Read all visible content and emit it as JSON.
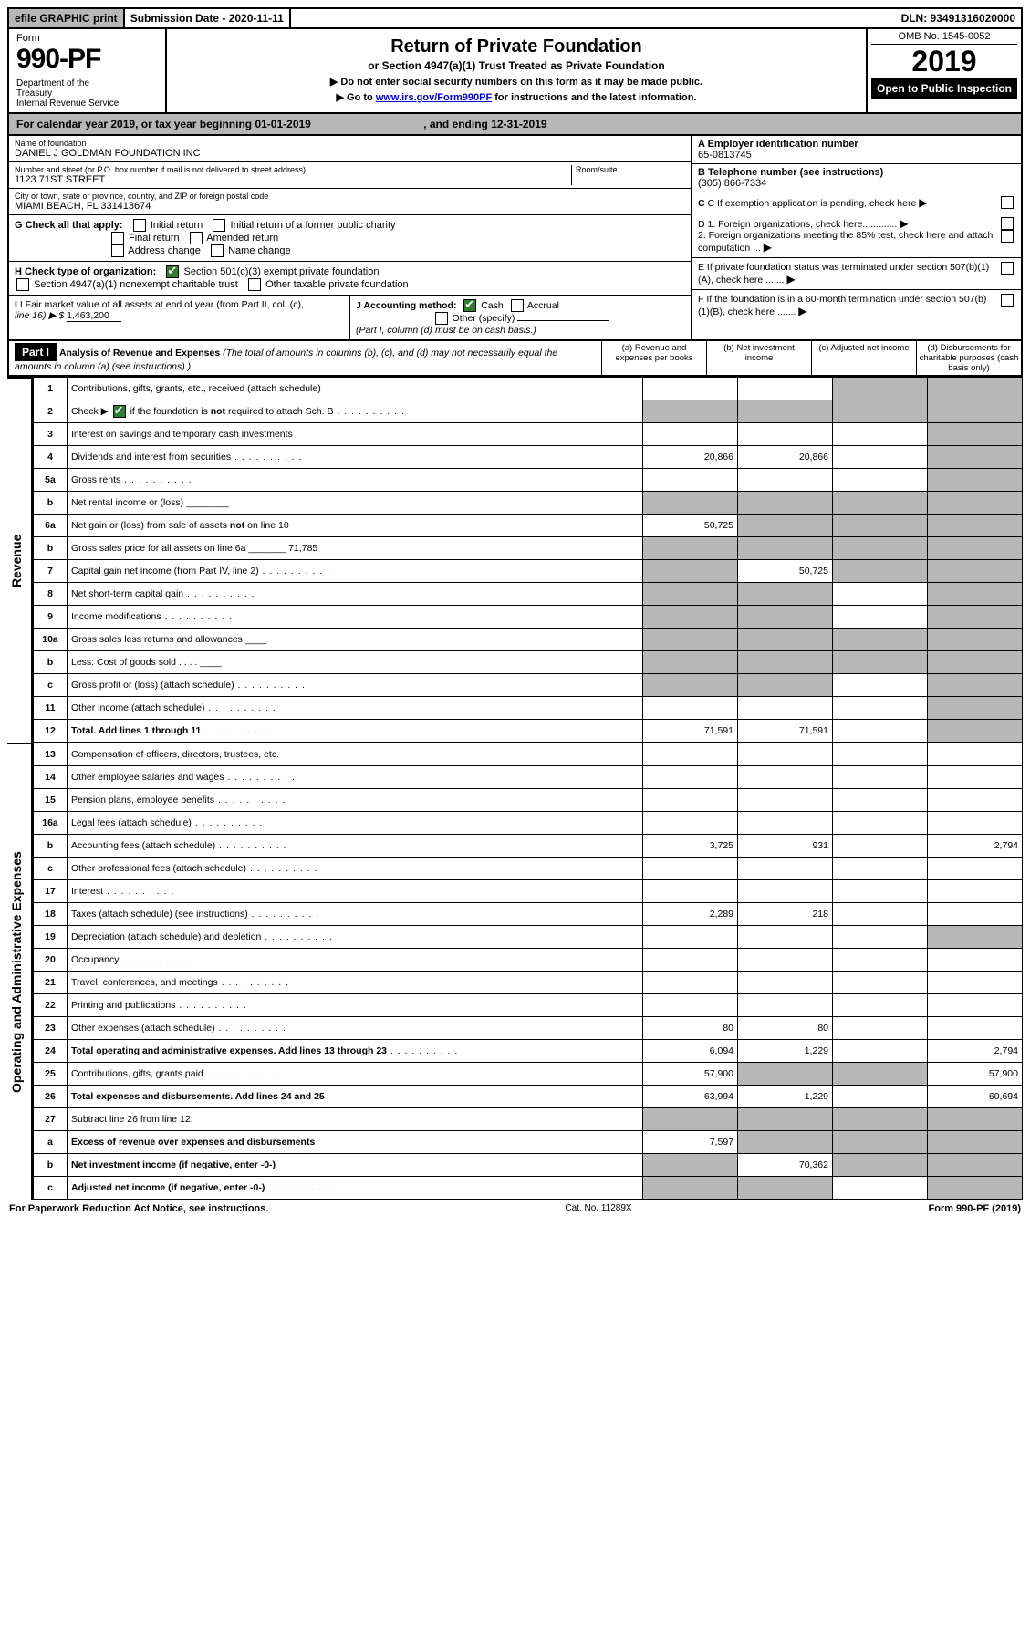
{
  "top": {
    "efile": "efile GRAPHIC print",
    "submission": "Submission Date - 2020-11-11",
    "dln": "DLN: 93491316020000"
  },
  "header": {
    "form_label": "Form",
    "form_number": "990-PF",
    "dept": "Department of the Treasury\nInternal Revenue Service",
    "title": "Return of Private Foundation",
    "subtitle": "or Section 4947(a)(1) Trust Treated as Private Foundation",
    "note1": "▶ Do not enter social security numbers on this form as it may be made public.",
    "note2_pre": "▶ Go to ",
    "note2_link": "www.irs.gov/Form990PF",
    "note2_post": " for instructions and the latest information.",
    "omb": "OMB No. 1545-0052",
    "year": "2019",
    "open": "Open to Public Inspection"
  },
  "cal_year": {
    "text_pre": "For calendar year 2019, or tax year beginning ",
    "begin": "01-01-2019",
    "mid": " , and ending ",
    "end": "12-31-2019"
  },
  "entity": {
    "name_lbl": "Name of foundation",
    "name": "DANIEL J GOLDMAN FOUNDATION INC",
    "addr_lbl": "Number and street (or P.O. box number if mail is not delivered to street address)",
    "addr": "1123 71ST STREET",
    "room_lbl": "Room/suite",
    "city_lbl": "City or town, state or province, country, and ZIP or foreign postal code",
    "city": "MIAMI BEACH, FL  331413674",
    "a_lbl": "A Employer identification number",
    "a_val": "65-0813745",
    "b_lbl": "B Telephone number (see instructions)",
    "b_val": "(305) 866-7334",
    "c_lbl": "C If exemption application is pending, check here",
    "d1": "D 1. Foreign organizations, check here.............",
    "d2": "2. Foreign organizations meeting the 85% test, check here and attach computation ...",
    "e": "E  If private foundation status was terminated under section 507(b)(1)(A), check here .......",
    "f": "F  If the foundation is in a 60-month termination under section 507(b)(1)(B), check here .......",
    "g_lbl": "G Check all that apply:",
    "g_opts": [
      "Initial return",
      "Initial return of a former public charity",
      "Final return",
      "Amended return",
      "Address change",
      "Name change"
    ],
    "h_lbl": "H Check type of organization:",
    "h_opt1": "Section 501(c)(3) exempt private foundation",
    "h_opt2": "Section 4947(a)(1) nonexempt charitable trust",
    "h_opt3": "Other taxable private foundation",
    "i_lbl": "I Fair market value of all assets at end of year (from Part II, col. (c),",
    "i_line16": "line 16) ▶ $",
    "i_val": "1,463,200",
    "j_lbl": "J Accounting method:",
    "j_cash": "Cash",
    "j_accrual": "Accrual",
    "j_other": "Other (specify)",
    "j_note": "(Part I, column (d) must be on cash basis.)"
  },
  "part1": {
    "label": "Part I",
    "title": "Analysis of Revenue and Expenses",
    "title_note": "(The total of amounts in columns (b), (c), and (d) may not necessarily equal the amounts in column (a) (see instructions).)",
    "col_a": "(a)   Revenue and expenses per books",
    "col_b": "(b)  Net investment income",
    "col_c": "(c)  Adjusted net income",
    "col_d": "(d)  Disbursements for charitable purposes (cash basis only)"
  },
  "side_labels": {
    "revenue": "Revenue",
    "expenses": "Operating and Administrative Expenses"
  },
  "rows": [
    {
      "n": "1",
      "d": "Contributions, gifts, grants, etc., received (attach schedule)",
      "a": "",
      "b": "",
      "c": "s",
      "ds": "s"
    },
    {
      "n": "2",
      "d": "Check ▶ ☑ if the foundation is not required to attach Sch. B",
      "dots": true,
      "a": "s",
      "b": "s",
      "c": "s",
      "ds": "s"
    },
    {
      "n": "3",
      "d": "Interest on savings and temporary cash investments",
      "a": "",
      "b": "",
      "c": "",
      "ds": "s"
    },
    {
      "n": "4",
      "d": "Dividends and interest from securities",
      "dots": true,
      "a": "20,866",
      "b": "20,866",
      "c": "",
      "ds": "s"
    },
    {
      "n": "5a",
      "d": "Gross rents",
      "dots": true,
      "a": "",
      "b": "",
      "c": "",
      "ds": "s"
    },
    {
      "n": "b",
      "d": "Net rental income or (loss)  ________",
      "a": "s",
      "b": "s",
      "c": "s",
      "ds": "s"
    },
    {
      "n": "6a",
      "d": "Net gain or (loss) from sale of assets not on line 10",
      "a": "50,725",
      "b": "s",
      "c": "s",
      "ds": "s"
    },
    {
      "n": "b",
      "d": "Gross sales price for all assets on line 6a _______ 71,785",
      "a": "s",
      "b": "s",
      "c": "s",
      "ds": "s"
    },
    {
      "n": "7",
      "d": "Capital gain net income (from Part IV, line 2)",
      "dots": true,
      "a": "s",
      "b": "50,725",
      "c": "s",
      "ds": "s"
    },
    {
      "n": "8",
      "d": "Net short-term capital gain",
      "dots": true,
      "a": "s",
      "b": "s",
      "c": "",
      "ds": "s"
    },
    {
      "n": "9",
      "d": "Income modifications",
      "dots": true,
      "a": "s",
      "b": "s",
      "c": "",
      "ds": "s"
    },
    {
      "n": "10a",
      "d": "Gross sales less returns and allowances  ____",
      "a": "s",
      "b": "s",
      "c": "s",
      "ds": "s"
    },
    {
      "n": "b",
      "d": "Less: Cost of goods sold    . . . .  ____",
      "a": "s",
      "b": "s",
      "c": "s",
      "ds": "s"
    },
    {
      "n": "c",
      "d": "Gross profit or (loss) (attach schedule)",
      "dots": true,
      "a": "s",
      "b": "s",
      "c": "",
      "ds": "s"
    },
    {
      "n": "11",
      "d": "Other income (attach schedule)",
      "dots": true,
      "a": "",
      "b": "",
      "c": "",
      "ds": "s"
    },
    {
      "n": "12",
      "d": "Total. Add lines 1 through 11",
      "bold": true,
      "dots": true,
      "a": "71,591",
      "b": "71,591",
      "c": "",
      "ds": "s"
    }
  ],
  "exp_rows": [
    {
      "n": "13",
      "d": "Compensation of officers, directors, trustees, etc.",
      "a": "",
      "b": "",
      "c": "",
      "ds": ""
    },
    {
      "n": "14",
      "d": "Other employee salaries and wages",
      "dots": true,
      "a": "",
      "b": "",
      "c": "",
      "ds": ""
    },
    {
      "n": "15",
      "d": "Pension plans, employee benefits",
      "dots": true,
      "a": "",
      "b": "",
      "c": "",
      "ds": ""
    },
    {
      "n": "16a",
      "d": "Legal fees (attach schedule)",
      "dots": true,
      "a": "",
      "b": "",
      "c": "",
      "ds": ""
    },
    {
      "n": "b",
      "d": "Accounting fees (attach schedule)",
      "dots": true,
      "a": "3,725",
      "b": "931",
      "c": "",
      "ds": "2,794"
    },
    {
      "n": "c",
      "d": "Other professional fees (attach schedule)",
      "dots": true,
      "a": "",
      "b": "",
      "c": "",
      "ds": ""
    },
    {
      "n": "17",
      "d": "Interest",
      "dots": true,
      "a": "",
      "b": "",
      "c": "",
      "ds": ""
    },
    {
      "n": "18",
      "d": "Taxes (attach schedule) (see instructions)",
      "dots": true,
      "a": "2,289",
      "b": "218",
      "c": "",
      "ds": ""
    },
    {
      "n": "19",
      "d": "Depreciation (attach schedule) and depletion",
      "dots": true,
      "a": "",
      "b": "",
      "c": "",
      "ds": "s"
    },
    {
      "n": "20",
      "d": "Occupancy",
      "dots": true,
      "a": "",
      "b": "",
      "c": "",
      "ds": ""
    },
    {
      "n": "21",
      "d": "Travel, conferences, and meetings",
      "dots": true,
      "a": "",
      "b": "",
      "c": "",
      "ds": ""
    },
    {
      "n": "22",
      "d": "Printing and publications",
      "dots": true,
      "a": "",
      "b": "",
      "c": "",
      "ds": ""
    },
    {
      "n": "23",
      "d": "Other expenses (attach schedule)",
      "dots": true,
      "a": "80",
      "b": "80",
      "c": "",
      "ds": ""
    },
    {
      "n": "24",
      "d": "Total operating and administrative expenses. Add lines 13 through 23",
      "bold": true,
      "dots": true,
      "a": "6,094",
      "b": "1,229",
      "c": "",
      "ds": "2,794"
    },
    {
      "n": "25",
      "d": "Contributions, gifts, grants paid",
      "dots": true,
      "a": "57,900",
      "b": "s",
      "c": "s",
      "ds": "57,900"
    },
    {
      "n": "26",
      "d": "Total expenses and disbursements. Add lines 24 and 25",
      "bold": true,
      "a": "63,994",
      "b": "1,229",
      "c": "",
      "ds": "60,694"
    },
    {
      "n": "27",
      "d": "Subtract line 26 from line 12:",
      "a": "s",
      "b": "s",
      "c": "s",
      "ds": "s"
    },
    {
      "n": "a",
      "d": "Excess of revenue over expenses and disbursements",
      "bold": true,
      "a": "7,597",
      "b": "s",
      "c": "s",
      "ds": "s"
    },
    {
      "n": "b",
      "d": "Net investment income (if negative, enter -0-)",
      "bold": true,
      "a": "s",
      "b": "70,362",
      "c": "s",
      "ds": "s"
    },
    {
      "n": "c",
      "d": "Adjusted net income (if negative, enter -0-)",
      "bold": true,
      "dots": true,
      "a": "s",
      "b": "s",
      "c": "",
      "ds": "s"
    }
  ],
  "footer": {
    "left": "For Paperwork Reduction Act Notice, see instructions.",
    "mid": "Cat. No. 11289X",
    "right": "Form 990-PF (2019)"
  }
}
